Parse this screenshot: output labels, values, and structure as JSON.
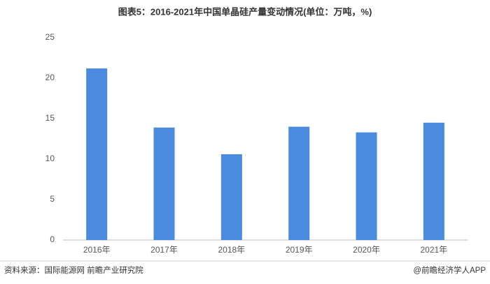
{
  "chart_data": {
    "type": "bar",
    "title": "图表5：2016-2021年中国单晶硅产量变动情况(单位：万吨，%)",
    "categories": [
      "2016年",
      "2017年",
      "2018年",
      "2019年",
      "2020年",
      "2021年"
    ],
    "values": [
      21.2,
      13.9,
      10.6,
      14.0,
      13.3,
      14.5
    ],
    "color": "#4a8be0",
    "ylim": [
      0,
      25
    ],
    "yticks": [
      0,
      5,
      10,
      15,
      20,
      25
    ],
    "grid": false,
    "source": "资料来源：国际能源网 前瞻产业研究院",
    "credit": "@前瞻经济学人APP"
  }
}
